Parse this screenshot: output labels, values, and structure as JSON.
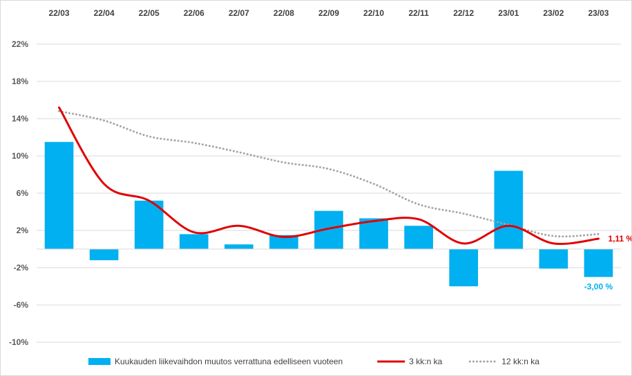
{
  "chart_data": {
    "type": "bar",
    "categories": [
      "22/03",
      "22/04",
      "22/05",
      "22/06",
      "22/07",
      "22/08",
      "22/09",
      "22/10",
      "22/11",
      "22/12",
      "23/01",
      "23/02",
      "23/03"
    ],
    "ylim": [
      -10,
      22
    ],
    "yticks": [
      22,
      18,
      14,
      10,
      6,
      2,
      -2,
      -6,
      -10
    ],
    "ytick_labels": [
      "22%",
      "18%",
      "14%",
      "10%",
      "6%",
      "2%",
      "-2%",
      "-6%",
      "-10%"
    ],
    "category_axis_position": "top",
    "grid": true,
    "legend_position": "bottom",
    "series": [
      {
        "name": "Kuukauden liikevaihdon muutos verrattuna edelliseen vuoteen",
        "kind": "bar",
        "color": "#00b0f0",
        "values": [
          11.5,
          -1.2,
          5.2,
          1.6,
          0.5,
          1.5,
          4.1,
          3.3,
          2.5,
          -4.0,
          8.4,
          -2.1,
          -3.0
        ]
      },
      {
        "name": "3 kk:n ka",
        "kind": "line",
        "style": "solid",
        "color": "#e00000",
        "values": [
          15.2,
          7.0,
          5.2,
          1.8,
          2.5,
          1.3,
          2.2,
          3.0,
          3.2,
          0.6,
          2.5,
          0.6,
          1.11
        ]
      },
      {
        "name": "12 kk:n ka",
        "kind": "line",
        "style": "dotted",
        "color": "#a6a6a6",
        "values": [
          14.8,
          13.8,
          12.1,
          11.4,
          10.4,
          9.3,
          8.6,
          7.0,
          4.8,
          3.8,
          2.6,
          1.4,
          1.6
        ]
      }
    ],
    "data_labels": [
      {
        "series": 1,
        "index": 12,
        "text": "1,11 %",
        "color": "#e00000"
      },
      {
        "series": 0,
        "index": 12,
        "text": "-3,00 %",
        "color": "#00b0f0"
      }
    ]
  },
  "legend": {
    "items": [
      {
        "label": "Kuukauden liikevaihdon muutos verrattuna edelliseen vuoteen",
        "marker": "bar",
        "color": "#00b0f0"
      },
      {
        "label": "3 kk:n ka",
        "marker": "line",
        "color": "#e00000"
      },
      {
        "label": "12 kk:n ka",
        "marker": "dotted",
        "color": "#a6a6a6"
      }
    ]
  }
}
